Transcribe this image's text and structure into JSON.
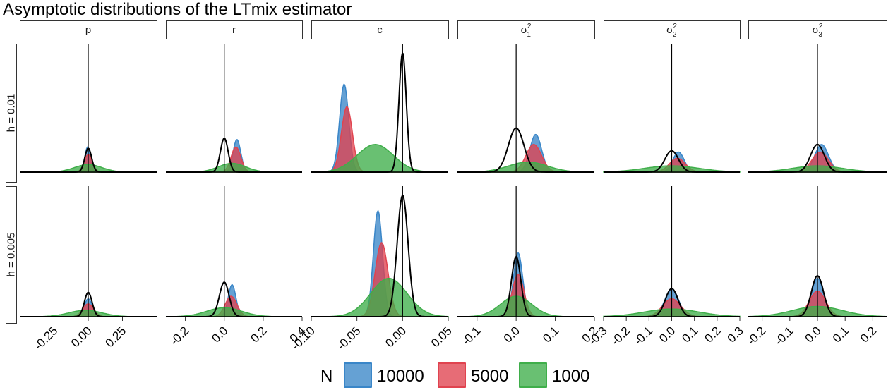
{
  "title": "Asymptotic distributions of the LTmix estimator",
  "chart_data": {
    "type": "area",
    "panels": [
      {
        "label": "p",
        "sub": "",
        "xlim": [
          -0.5,
          0.5
        ],
        "ticks": [
          -0.25,
          0.0,
          0.25
        ],
        "tick_labels": [
          "-0.25",
          "0.00",
          "0.25"
        ]
      },
      {
        "label": "r",
        "sub": "",
        "xlim": [
          -0.3,
          0.4
        ],
        "ticks": [
          -0.2,
          0.0,
          0.2,
          0.4
        ],
        "tick_labels": [
          "-0.2",
          "0.0",
          "0.2",
          "0.4"
        ]
      },
      {
        "label": "c",
        "sub": "",
        "xlim": [
          -0.1,
          0.05
        ],
        "ticks": [
          -0.1,
          -0.05,
          0.0,
          0.05
        ],
        "tick_labels": [
          "-0.10",
          "-0.05",
          "0.00",
          "0.05"
        ]
      },
      {
        "label": "σ",
        "sub": "1",
        "xlim": [
          -0.15,
          0.2
        ],
        "ticks": [
          -0.1,
          0.0,
          0.1,
          0.2
        ],
        "tick_labels": [
          "-0.1",
          "0.0",
          "0.1",
          "0.2"
        ]
      },
      {
        "label": "σ",
        "sub": "2",
        "xlim": [
          -0.3,
          0.3
        ],
        "ticks": [
          -0.3,
          -0.2,
          -0.1,
          0.0,
          0.1,
          0.2,
          0.3
        ],
        "tick_labels": [
          "-0.3",
          "-0.2",
          "-0.1",
          "0.0",
          "0.1",
          "0.2",
          "0.3"
        ]
      },
      {
        "label": "σ",
        "sub": "3",
        "xlim": [
          -0.25,
          0.25
        ],
        "ticks": [
          -0.2,
          -0.1,
          0.0,
          0.1,
          0.2
        ],
        "tick_labels": [
          "-0.2",
          "-0.1",
          "0.0",
          "0.1",
          "0.2"
        ]
      }
    ],
    "rows": [
      "h = 0.01",
      "h = 0.005"
    ],
    "legend": {
      "title": "N",
      "position": "bottom",
      "entries": [
        "10000",
        "5000",
        "1000"
      ]
    },
    "colors": {
      "10000": "#3a86c8",
      "5000": "#e0434f",
      "1000": "#3fae4a",
      "reference": "#000000"
    },
    "series_note_by_panel": [
      [
        {
          "N": "10000",
          "mean": -0.005,
          "sd": 0.02,
          "peak": 0.2
        },
        {
          "N": "5000",
          "mean": 0.0,
          "sd": 0.03,
          "peak": 0.14
        },
        {
          "N": "1000",
          "mean": 0.0,
          "sd": 0.1,
          "peak": 0.06
        },
        {
          "N": "ref",
          "mean": 0.0,
          "sd": 0.025,
          "peak": 0.19
        }
      ],
      [
        {
          "N": "10000",
          "mean": 0.065,
          "sd": 0.02,
          "peak": 0.26
        },
        {
          "N": "5000",
          "mean": 0.06,
          "sd": 0.025,
          "peak": 0.2
        },
        {
          "N": "1000",
          "mean": 0.04,
          "sd": 0.07,
          "peak": 0.07
        },
        {
          "N": "ref",
          "mean": 0.0,
          "sd": 0.02,
          "peak": 0.27
        }
      ],
      [
        {
          "N": "10000",
          "mean": -0.064,
          "sd": 0.005,
          "peak": 0.7
        },
        {
          "N": "5000",
          "mean": -0.061,
          "sd": 0.006,
          "peak": 0.52
        },
        {
          "N": "1000",
          "mean": -0.03,
          "sd": 0.02,
          "peak": 0.22
        },
        {
          "N": "ref",
          "mean": 0.0,
          "sd": 0.004,
          "peak": 0.95
        }
      ],
      [
        {
          "N": "10000",
          "mean": 0.05,
          "sd": 0.015,
          "peak": 0.3
        },
        {
          "N": "5000",
          "mean": 0.045,
          "sd": 0.02,
          "peak": 0.22
        },
        {
          "N": "1000",
          "mean": 0.03,
          "sd": 0.05,
          "peak": 0.08
        },
        {
          "N": "ref",
          "mean": 0.0,
          "sd": 0.02,
          "peak": 0.35
        }
      ],
      [
        {
          "N": "10000",
          "mean": 0.03,
          "sd": 0.025,
          "peak": 0.16
        },
        {
          "N": "5000",
          "mean": 0.025,
          "sd": 0.035,
          "peak": 0.11
        },
        {
          "N": "1000",
          "mean": 0.0,
          "sd": 0.12,
          "peak": 0.05
        },
        {
          "N": "ref",
          "mean": 0.0,
          "sd": 0.03,
          "peak": 0.17
        }
      ],
      [
        {
          "N": "10000",
          "mean": 0.015,
          "sd": 0.025,
          "peak": 0.22
        },
        {
          "N": "5000",
          "mean": 0.01,
          "sd": 0.03,
          "peak": 0.16
        },
        {
          "N": "1000",
          "mean": 0.0,
          "sd": 0.09,
          "peak": 0.05
        },
        {
          "N": "ref",
          "mean": 0.0,
          "sd": 0.025,
          "peak": 0.22
        }
      ]
    ],
    "series_note_by_panel_row2": [
      [
        {
          "N": "10000",
          "mean": 0.0,
          "sd": 0.03,
          "peak": 0.14
        },
        {
          "N": "5000",
          "mean": 0.0,
          "sd": 0.04,
          "peak": 0.1
        },
        {
          "N": "1000",
          "mean": -0.02,
          "sd": 0.12,
          "peak": 0.05
        },
        {
          "N": "ref",
          "mean": 0.0,
          "sd": 0.028,
          "peak": 0.19
        }
      ],
      [
        {
          "N": "10000",
          "mean": 0.04,
          "sd": 0.02,
          "peak": 0.25
        },
        {
          "N": "5000",
          "mean": 0.035,
          "sd": 0.03,
          "peak": 0.16
        },
        {
          "N": "1000",
          "mean": 0.0,
          "sd": 0.09,
          "peak": 0.07
        },
        {
          "N": "ref",
          "mean": 0.0,
          "sd": 0.025,
          "peak": 0.27
        }
      ],
      [
        {
          "N": "10000",
          "mean": -0.027,
          "sd": 0.005,
          "peak": 0.83
        },
        {
          "N": "5000",
          "mean": -0.023,
          "sd": 0.007,
          "peak": 0.58
        },
        {
          "N": "1000",
          "mean": -0.015,
          "sd": 0.02,
          "peak": 0.3
        },
        {
          "N": "ref",
          "mean": 0.0,
          "sd": 0.006,
          "peak": 0.95
        }
      ],
      [
        {
          "N": "10000",
          "mean": 0.005,
          "sd": 0.012,
          "peak": 0.5
        },
        {
          "N": "5000",
          "mean": 0.005,
          "sd": 0.015,
          "peak": 0.33
        },
        {
          "N": "1000",
          "mean": 0.0,
          "sd": 0.04,
          "peak": 0.16
        },
        {
          "N": "ref",
          "mean": 0.0,
          "sd": 0.012,
          "peak": 0.47
        }
      ],
      [
        {
          "N": "10000",
          "mean": 0.0,
          "sd": 0.03,
          "peak": 0.22
        },
        {
          "N": "5000",
          "mean": 0.0,
          "sd": 0.04,
          "peak": 0.14
        },
        {
          "N": "1000",
          "mean": 0.0,
          "sd": 0.12,
          "peak": 0.06
        },
        {
          "N": "ref",
          "mean": 0.0,
          "sd": 0.028,
          "peak": 0.22
        }
      ],
      [
        {
          "N": "10000",
          "mean": 0.0,
          "sd": 0.022,
          "peak": 0.3
        },
        {
          "N": "5000",
          "mean": 0.0,
          "sd": 0.03,
          "peak": 0.2
        },
        {
          "N": "1000",
          "mean": 0.0,
          "sd": 0.09,
          "peak": 0.08
        },
        {
          "N": "ref",
          "mean": 0.0,
          "sd": 0.022,
          "peak": 0.32
        }
      ]
    ]
  }
}
